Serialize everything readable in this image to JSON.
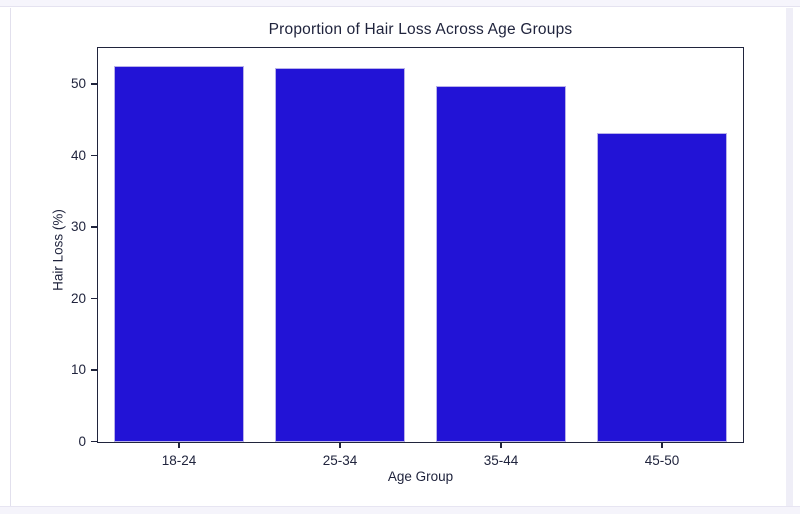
{
  "page": {
    "background": "#ffffff",
    "top_bar_color": "#f6f5fc",
    "bottom_bar_color": "#f5f4fb",
    "scrollbar_color": "#efeef7",
    "text_color": "#20243d"
  },
  "chart_data": {
    "type": "bar",
    "title": "Proportion of Hair Loss Across Age Groups",
    "xlabel": "Age Group",
    "ylabel": "Hair Loss (%)",
    "categories": [
      "18-24",
      "25-34",
      "35-44",
      "45-50"
    ],
    "values": [
      52.5,
      52.2,
      49.7,
      43.2
    ],
    "yticks": [
      0,
      10,
      20,
      30,
      40,
      50
    ],
    "ylim": [
      0,
      55
    ],
    "bar_color": "#2213d6",
    "bar_edge_color": "#b8b1ea",
    "axis_color": "#20243d",
    "grid": false,
    "legend": null
  }
}
